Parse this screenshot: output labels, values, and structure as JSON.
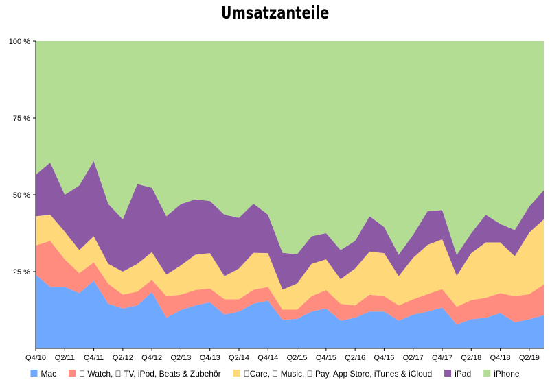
{
  "chart_data": {
    "type": "area",
    "stacked": true,
    "normalized": true,
    "title": "Umsatzanteile",
    "x": [
      "Q4/10",
      "Q1/11",
      "Q2/11",
      "Q3/11",
      "Q4/11",
      "Q1/12",
      "Q2/12",
      "Q3/12",
      "Q4/12",
      "Q1/13",
      "Q2/13",
      "Q3/13",
      "Q4/13",
      "Q1/14",
      "Q2/14",
      "Q3/14",
      "Q4/14",
      "Q1/15",
      "Q2/15",
      "Q3/15",
      "Q4/15",
      "Q1/16",
      "Q2/16",
      "Q3/16",
      "Q4/16",
      "Q1/17",
      "Q2/17",
      "Q3/17",
      "Q4/17",
      "Q1/18",
      "Q2/18",
      "Q3/18",
      "Q4/18",
      "Q1/19",
      "Q2/19",
      "Q3/19"
    ],
    "x_tick_labels": [
      "Q4/10",
      "Q2/11",
      "Q4/11",
      "Q2/12",
      "Q4/12",
      "Q2/13",
      "Q4/13",
      "Q2/14",
      "Q4/14",
      "Q2/15",
      "Q4/15",
      "Q2/16",
      "Q4/16",
      "Q2/17",
      "Q4/17",
      "Q2/18",
      "Q4/18",
      "Q2/19"
    ],
    "y_tick_labels": [
      "25 %",
      "50 %",
      "75 %",
      "100 %"
    ],
    "y_ticks": [
      25,
      50,
      75,
      100
    ],
    "ylim": [
      0,
      100
    ],
    "legend_position": "bottom",
    "series": [
      {
        "name": "Mac",
        "color": "#6fa8ff",
        "values": [
          24,
          20,
          20,
          18,
          22,
          14.5,
          13,
          14,
          18.3,
          10,
          12.5,
          14,
          15,
          11,
          12,
          14.6,
          15.5,
          9.3,
          9.6,
          12,
          13,
          9,
          10,
          12,
          12,
          9,
          11,
          12,
          13.3,
          7.8,
          9.5,
          10,
          11.5,
          8.5,
          9.5,
          10.8
        ]
      },
      {
        "name": " Watch,  TV, iPod, Beats & Zubehör",
        "color": "#ff8c7e",
        "values": [
          9.5,
          15,
          9,
          6.5,
          6,
          6.5,
          4.5,
          4.5,
          4,
          7,
          5,
          5,
          4.5,
          5,
          4,
          4.5,
          4.5,
          3.3,
          3,
          5,
          6,
          5.5,
          4,
          5.5,
          5,
          5,
          5,
          5.7,
          6,
          5.8,
          6.2,
          6.5,
          6.5,
          8.5,
          8.2,
          10
        ]
      },
      {
        "name": "Care,  Music,  Pay, App Store, iTunes & iCloud",
        "color": "#ffd979",
        "values": [
          9.5,
          8.5,
          9,
          7.5,
          8.5,
          6.5,
          7.5,
          9,
          9,
          7,
          9.5,
          11.5,
          11.5,
          7.5,
          10,
          12,
          11,
          6.5,
          8.5,
          10.5,
          10,
          8,
          12,
          14,
          14,
          9.5,
          13.5,
          16,
          16.2,
          10,
          15.3,
          18,
          16.5,
          13,
          20,
          21.2
        ]
      },
      {
        "name": "iPad",
        "color": "#8c5aa4",
        "values": [
          13.5,
          17,
          12,
          21,
          24.5,
          19.5,
          17,
          26,
          21,
          19,
          20,
          18,
          17,
          20,
          16.5,
          16,
          12.5,
          12,
          9.5,
          9,
          8.5,
          9.5,
          9,
          11.5,
          8.5,
          7,
          7.5,
          11,
          9.5,
          6.8,
          6.5,
          9,
          6,
          8.5,
          8.5,
          9.5
        ]
      },
      {
        "name": "iPhone",
        "color": "#b4dd94",
        "values": [
          43.5,
          39.5,
          50,
          47,
          39,
          53,
          58,
          46.5,
          47.7,
          57,
          53,
          51.5,
          52,
          56.5,
          57.5,
          52.9,
          56.5,
          68.9,
          69.4,
          63.5,
          62.5,
          68,
          65,
          57,
          60.5,
          69.5,
          63,
          55.3,
          55,
          69.6,
          62.5,
          56.5,
          59.5,
          61.5,
          53.8,
          48.5
        ]
      }
    ]
  }
}
